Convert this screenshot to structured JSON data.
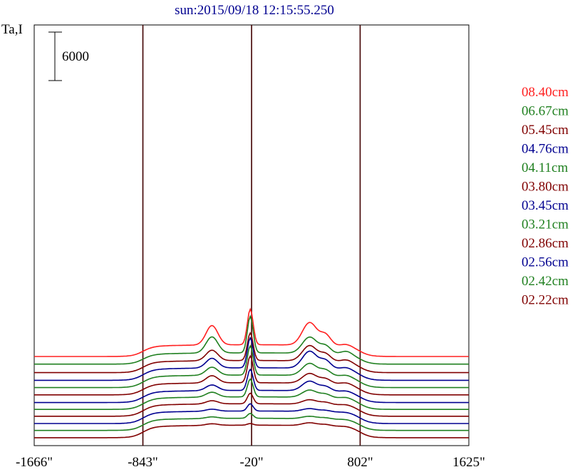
{
  "chart_data": {
    "type": "line",
    "title": "sun:2015/09/18 12:15:55.250",
    "ylabel": "Ta,I",
    "xlabel": "",
    "scale_bar": {
      "label": "6000",
      "value": 6000
    },
    "xlim": [
      -1666,
      1625
    ],
    "x_ticks": [
      {
        "value": -1666,
        "label": "-1666\""
      },
      {
        "value": -843,
        "label": "-843\""
      },
      {
        "value": -20,
        "label": "-20\""
      },
      {
        "value": 802,
        "label": "802\""
      },
      {
        "value": 1625,
        "label": "1625\""
      }
    ],
    "vertical_lines": [
      -843,
      -20,
      802
    ],
    "grid": false,
    "legend_position": "right",
    "series": [
      {
        "name": "08.40cm",
        "color": "#ff2020",
        "offset": 10150,
        "baseline": 0,
        "plateau": 1450,
        "k1": 2400,
        "k2": 4400,
        "k3": 2800,
        "k4": 250
      },
      {
        "name": "06.67cm",
        "color": "#208020",
        "offset": 9200,
        "baseline": 0,
        "plateau": 1400,
        "k1": 2000,
        "k2": 4500,
        "k3": 2000,
        "k4": 400
      },
      {
        "name": "05.45cm",
        "color": "#800000",
        "offset": 8150,
        "baseline": 0,
        "plateau": 1500,
        "k1": 1300,
        "k2": 3400,
        "k3": 1900,
        "k4": 300
      },
      {
        "name": "04.76cm",
        "color": "#000090",
        "offset": 7200,
        "baseline": 0,
        "plateau": 1550,
        "k1": 1200,
        "k2": 3700,
        "k3": 2100,
        "k4": 250
      },
      {
        "name": "04.11cm",
        "color": "#208020",
        "offset": 6300,
        "baseline": 0,
        "plateau": 1550,
        "k1": 1000,
        "k2": 3600,
        "k3": 1500,
        "k4": 200
      },
      {
        "name": "03.80cm",
        "color": "#800000",
        "offset": 5400,
        "baseline": 0,
        "plateau": 1500,
        "k1": 900,
        "k2": 3300,
        "k3": 1200,
        "k4": 200
      },
      {
        "name": "03.45cm",
        "color": "#000090",
        "offset": 4450,
        "baseline": 0,
        "plateau": 1500,
        "k1": 700,
        "k2": 2600,
        "k3": 1200,
        "k4": 150
      },
      {
        "name": "03.21cm",
        "color": "#208020",
        "offset": 3600,
        "baseline": 0,
        "plateau": 1550,
        "k1": 600,
        "k2": 2200,
        "k3": 900,
        "k4": 150
      },
      {
        "name": "02.86cm",
        "color": "#800000",
        "offset": 2750,
        "baseline": 0,
        "plateau": 1550,
        "k1": 400,
        "k2": 1300,
        "k3": 550,
        "k4": 100
      },
      {
        "name": "02.56cm",
        "color": "#000090",
        "offset": 1850,
        "baseline": 0,
        "plateau": 1550,
        "k1": 250,
        "k2": 900,
        "k3": 350,
        "k4": 50
      },
      {
        "name": "02.42cm",
        "color": "#208020",
        "offset": 1000,
        "baseline": 0,
        "plateau": 1500,
        "k1": 200,
        "k2": 600,
        "k3": 300,
        "k4": 50
      },
      {
        "name": "02.22cm",
        "color": "#800000",
        "offset": 0,
        "baseline": 100,
        "plateau": 1550,
        "k1": 200,
        "k2": 200,
        "k3": 350,
        "k4": 50
      }
    ]
  }
}
